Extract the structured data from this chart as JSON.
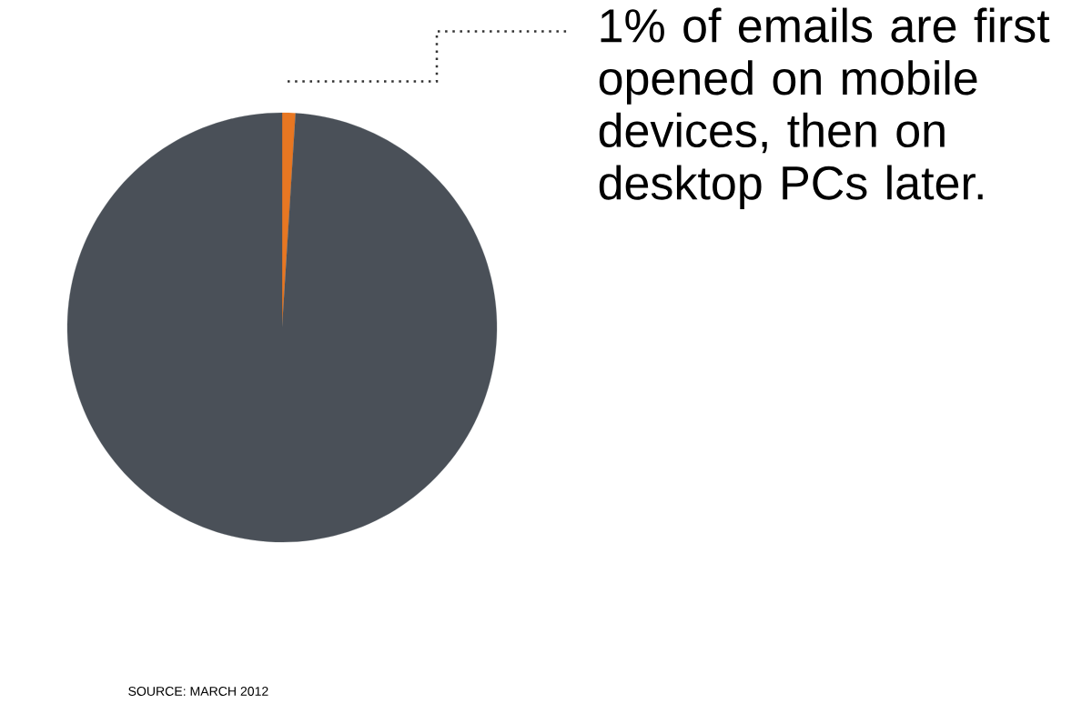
{
  "chart_data": {
    "type": "pie",
    "categories": [
      null,
      null
    ],
    "values": [
      1,
      99
    ],
    "colors": [
      "#e87722",
      "#4a5058"
    ],
    "annotations": [
      "1% of emails are first opened on mobile devices, then on desktop PCs later.",
      "SOURCE: MARCH 2012"
    ]
  }
}
